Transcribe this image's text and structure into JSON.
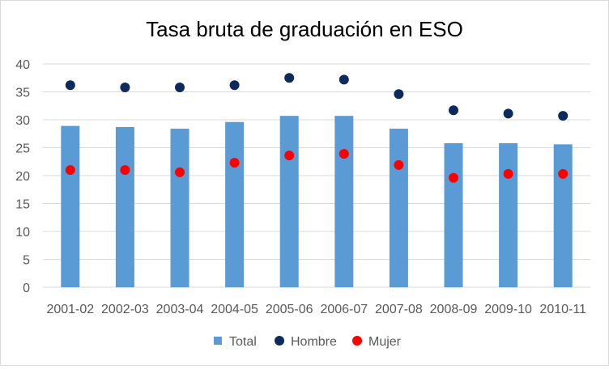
{
  "chart_data": {
    "type": "bar",
    "title": "Tasa bruta de graduación en ESO",
    "xlabel": "",
    "ylabel": "",
    "ylim": [
      0,
      40
    ],
    "yticks": [
      0,
      5,
      10,
      15,
      20,
      25,
      30,
      35,
      40
    ],
    "grid": true,
    "legend_position": "bottom",
    "categories": [
      "2001-02",
      "2002-03",
      "2003-04",
      "2004-05",
      "2005-06",
      "2006-07",
      "2007-08",
      "2008-09",
      "2009-10",
      "2010-11"
    ],
    "series": [
      {
        "name": "Total",
        "kind": "bar",
        "color": "#5b9bd5",
        "values": [
          28.9,
          28.7,
          28.4,
          29.6,
          30.7,
          30.7,
          28.4,
          25.8,
          25.8,
          25.6
        ]
      },
      {
        "name": "Hombre",
        "kind": "marker",
        "color": "#0c2a5b",
        "values": [
          36.2,
          35.8,
          35.8,
          36.2,
          37.5,
          37.2,
          34.6,
          31.7,
          31.1,
          30.7
        ]
      },
      {
        "name": "Mujer",
        "kind": "marker",
        "color": "#ff0000",
        "values": [
          21.0,
          21.0,
          20.6,
          22.3,
          23.6,
          23.9,
          21.9,
          19.6,
          20.3,
          20.3
        ]
      }
    ]
  }
}
